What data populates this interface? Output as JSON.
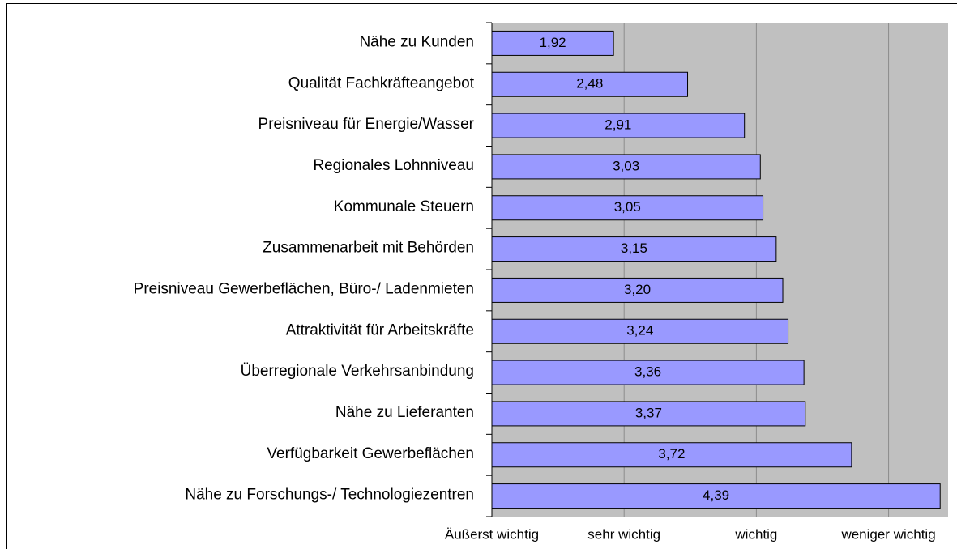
{
  "chart_data": {
    "type": "bar",
    "orientation": "horizontal",
    "categories": [
      "Nähe zu Kunden",
      "Qualität Fachkräfteangebot",
      "Preisniveau für Energie/Wasser",
      "Regionales Lohnniveau",
      "Kommunale Steuern",
      "Zusammenarbeit mit Behörden",
      "Preisniveau Gewerbeflächen, Büro-/ Ladenmieten",
      "Attraktivität für Arbeitskräfte",
      "Überregionale Verkehrsanbindung",
      "Nähe zu Lieferanten",
      "Verfügbarkeit Gewerbeflächen",
      "Nähe zu Forschungs-/ Technologiezentren"
    ],
    "values": [
      1.92,
      2.48,
      2.91,
      3.03,
      3.05,
      3.15,
      3.2,
      3.24,
      3.36,
      3.37,
      3.72,
      4.39
    ],
    "value_labels": [
      "1,92",
      "2,48",
      "2,91",
      "3,03",
      "3,05",
      "3,15",
      "3,20",
      "3,24",
      "3,36",
      "3,37",
      "3,72",
      "4,39"
    ],
    "color": "#9999ff",
    "plot_background": "#c0c0c0",
    "xlim": [
      1,
      4.45
    ],
    "xticks": [
      {
        "value": 1,
        "label": "Äußerst wichtig"
      },
      {
        "value": 2,
        "label": "sehr wichtig"
      },
      {
        "value": 3,
        "label": "wichtig"
      },
      {
        "value": 4,
        "label": "weniger wichtig"
      }
    ],
    "grid": true
  }
}
